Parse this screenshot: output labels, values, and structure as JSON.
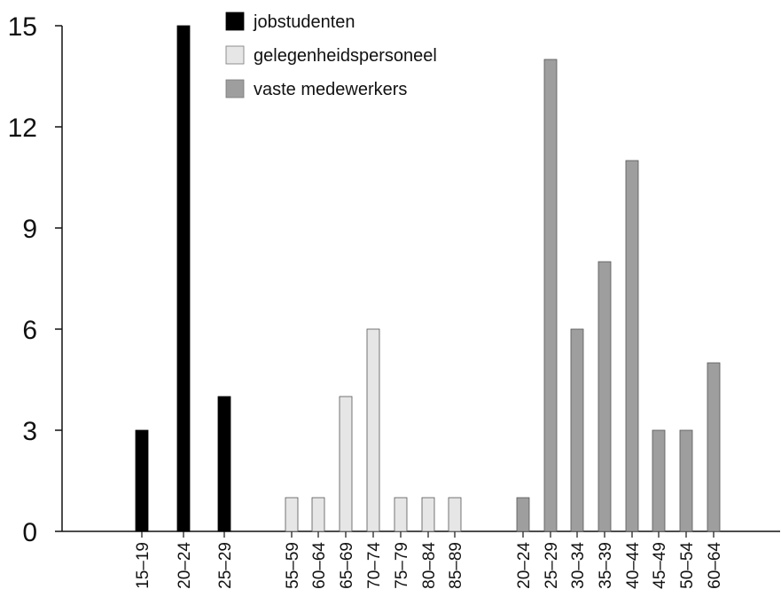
{
  "chart_data": {
    "type": "bar",
    "ylim": [
      0,
      15
    ],
    "yticks": [
      0,
      3,
      6,
      9,
      12,
      15
    ],
    "grid": false,
    "legend_position": "top-center",
    "series": [
      {
        "name": "jobstudenten",
        "color": "#000000",
        "categories": [
          "15-19",
          "20-24",
          "25-29"
        ],
        "values": [
          3,
          15,
          4
        ]
      },
      {
        "name": "gelegenheidspersoneel",
        "color": "#e6e6e6",
        "categories": [
          "55-59",
          "60-64",
          "65-69",
          "70-74",
          "75-79",
          "80-84",
          "85-89"
        ],
        "values": [
          1,
          1,
          4,
          6,
          1,
          1,
          1
        ]
      },
      {
        "name": "vaste medewerkers",
        "color": "#9e9e9e",
        "categories": [
          "20-24",
          "25-29",
          "30-34",
          "35-39",
          "40-44",
          "45-49",
          "50-54",
          "60-64"
        ],
        "values": [
          1,
          14,
          6,
          8,
          11,
          3,
          3,
          5
        ]
      }
    ]
  }
}
